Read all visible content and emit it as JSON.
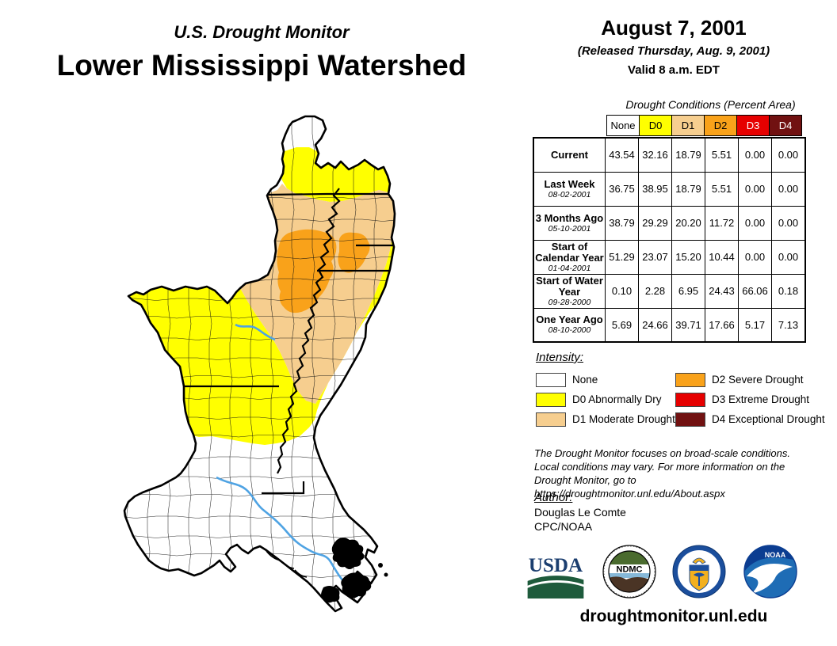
{
  "page_title": {
    "kicker": "U.S. Drought Monitor",
    "title": "Lower Mississippi Watershed"
  },
  "date_block": {
    "date": "August 7, 2001",
    "released": "(Released Thursday, Aug. 9, 2001)",
    "valid": "Valid 8 a.m. EDT"
  },
  "table": {
    "caption": "Drought Conditions (Percent Area)",
    "columns": [
      "None",
      "D0",
      "D1",
      "D2",
      "D3",
      "D4"
    ],
    "column_colors": [
      "#FFFFFF",
      "#FFFF00",
      "#F6CE8F",
      "#F9A21A",
      "#E60000",
      "#711111"
    ],
    "column_text_colors": [
      "#000000",
      "#000000",
      "#000000",
      "#000000",
      "#FFFFFF",
      "#FFFFFF"
    ],
    "rows": [
      {
        "label": "Current",
        "date": "",
        "values": [
          "43.54",
          "32.16",
          "18.79",
          "5.51",
          "0.00",
          "0.00"
        ]
      },
      {
        "label": "Last Week",
        "date": "08-02-2001",
        "values": [
          "36.75",
          "38.95",
          "18.79",
          "5.51",
          "0.00",
          "0.00"
        ]
      },
      {
        "label": "3 Months Ago",
        "date": "05-10-2001",
        "values": [
          "38.79",
          "29.29",
          "20.20",
          "11.72",
          "0.00",
          "0.00"
        ]
      },
      {
        "label": "Start of Calendar Year",
        "date": "01-04-2001",
        "values": [
          "51.29",
          "23.07",
          "15.20",
          "10.44",
          "0.00",
          "0.00"
        ]
      },
      {
        "label": "Start of Water Year",
        "date": "09-28-2000",
        "values": [
          "0.10",
          "2.28",
          "6.95",
          "24.43",
          "66.06",
          "0.18"
        ]
      },
      {
        "label": "One Year Ago",
        "date": "08-10-2000",
        "values": [
          "5.69",
          "24.66",
          "39.71",
          "17.66",
          "5.17",
          "7.13"
        ]
      }
    ]
  },
  "legend": {
    "heading": "Intensity:",
    "items": [
      {
        "label": "None",
        "color": "#FFFFFF"
      },
      {
        "label": "D0 Abnormally Dry",
        "color": "#FFFF00"
      },
      {
        "label": "D1 Moderate Drought",
        "color": "#F6CE8F"
      },
      {
        "label": "D2 Severe Drought",
        "color": "#F9A21A"
      },
      {
        "label": "D3 Extreme Drought",
        "color": "#E60000"
      },
      {
        "label": "D4 Exceptional Drought",
        "color": "#711111"
      }
    ]
  },
  "disclaimer": {
    "line1": "The Drought Monitor focuses on broad-scale conditions.",
    "line2": "Local conditions may vary. For more information on the",
    "line3": "Drought Monitor, go to https://droughtmonitor.unl.edu/About.aspx"
  },
  "author": {
    "heading": "Author:",
    "name": "Douglas Le Comte",
    "org": "CPC/NOAA"
  },
  "logos": {
    "usda": "USDA",
    "ndmc": "NDMC",
    "noaa": "NOAA"
  },
  "footer": {
    "url": "droughtmonitor.unl.edu"
  },
  "map": {
    "colors": {
      "none": "#FFFFFF",
      "d0": "#FFFF00",
      "d1": "#F6CE8F",
      "d2": "#F9A21A",
      "river": "#4FA3E3",
      "boundary": "#000000"
    }
  }
}
